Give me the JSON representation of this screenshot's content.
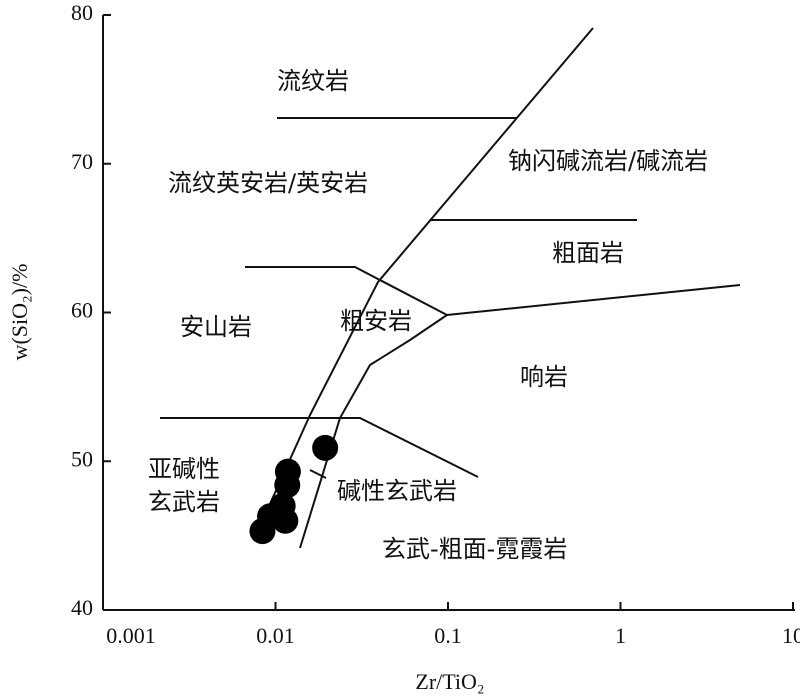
{
  "chart_data": {
    "type": "scatter",
    "xlabel": "Zr/TiO₂",
    "ylabel": "w(SiO₂)/%",
    "xlog": true,
    "xlim": [
      0.001,
      10
    ],
    "xticks": [
      0.001,
      0.01,
      0.1,
      1,
      10
    ],
    "ylim": [
      40,
      80
    ],
    "yticks": [
      40,
      50,
      60,
      70,
      80
    ],
    "color": "#000000",
    "x": [
      0.0194,
      0.0118,
      0.0117,
      0.011,
      0.0114,
      0.0093,
      0.0084
    ],
    "y": [
      50.9,
      49.3,
      48.4,
      47.0,
      46.0,
      46.3,
      45.3
    ],
    "regions": [
      "流纹岩",
      "流纹英安岩/英安岩",
      "钠闪碱流岩/碱流岩",
      "粗面岩",
      "安山岩",
      "粗安岩",
      "响岩",
      "亚碱性",
      "玄武岩",
      "碱性玄武岩",
      "玄武-粗面-霓霞岩"
    ]
  }
}
